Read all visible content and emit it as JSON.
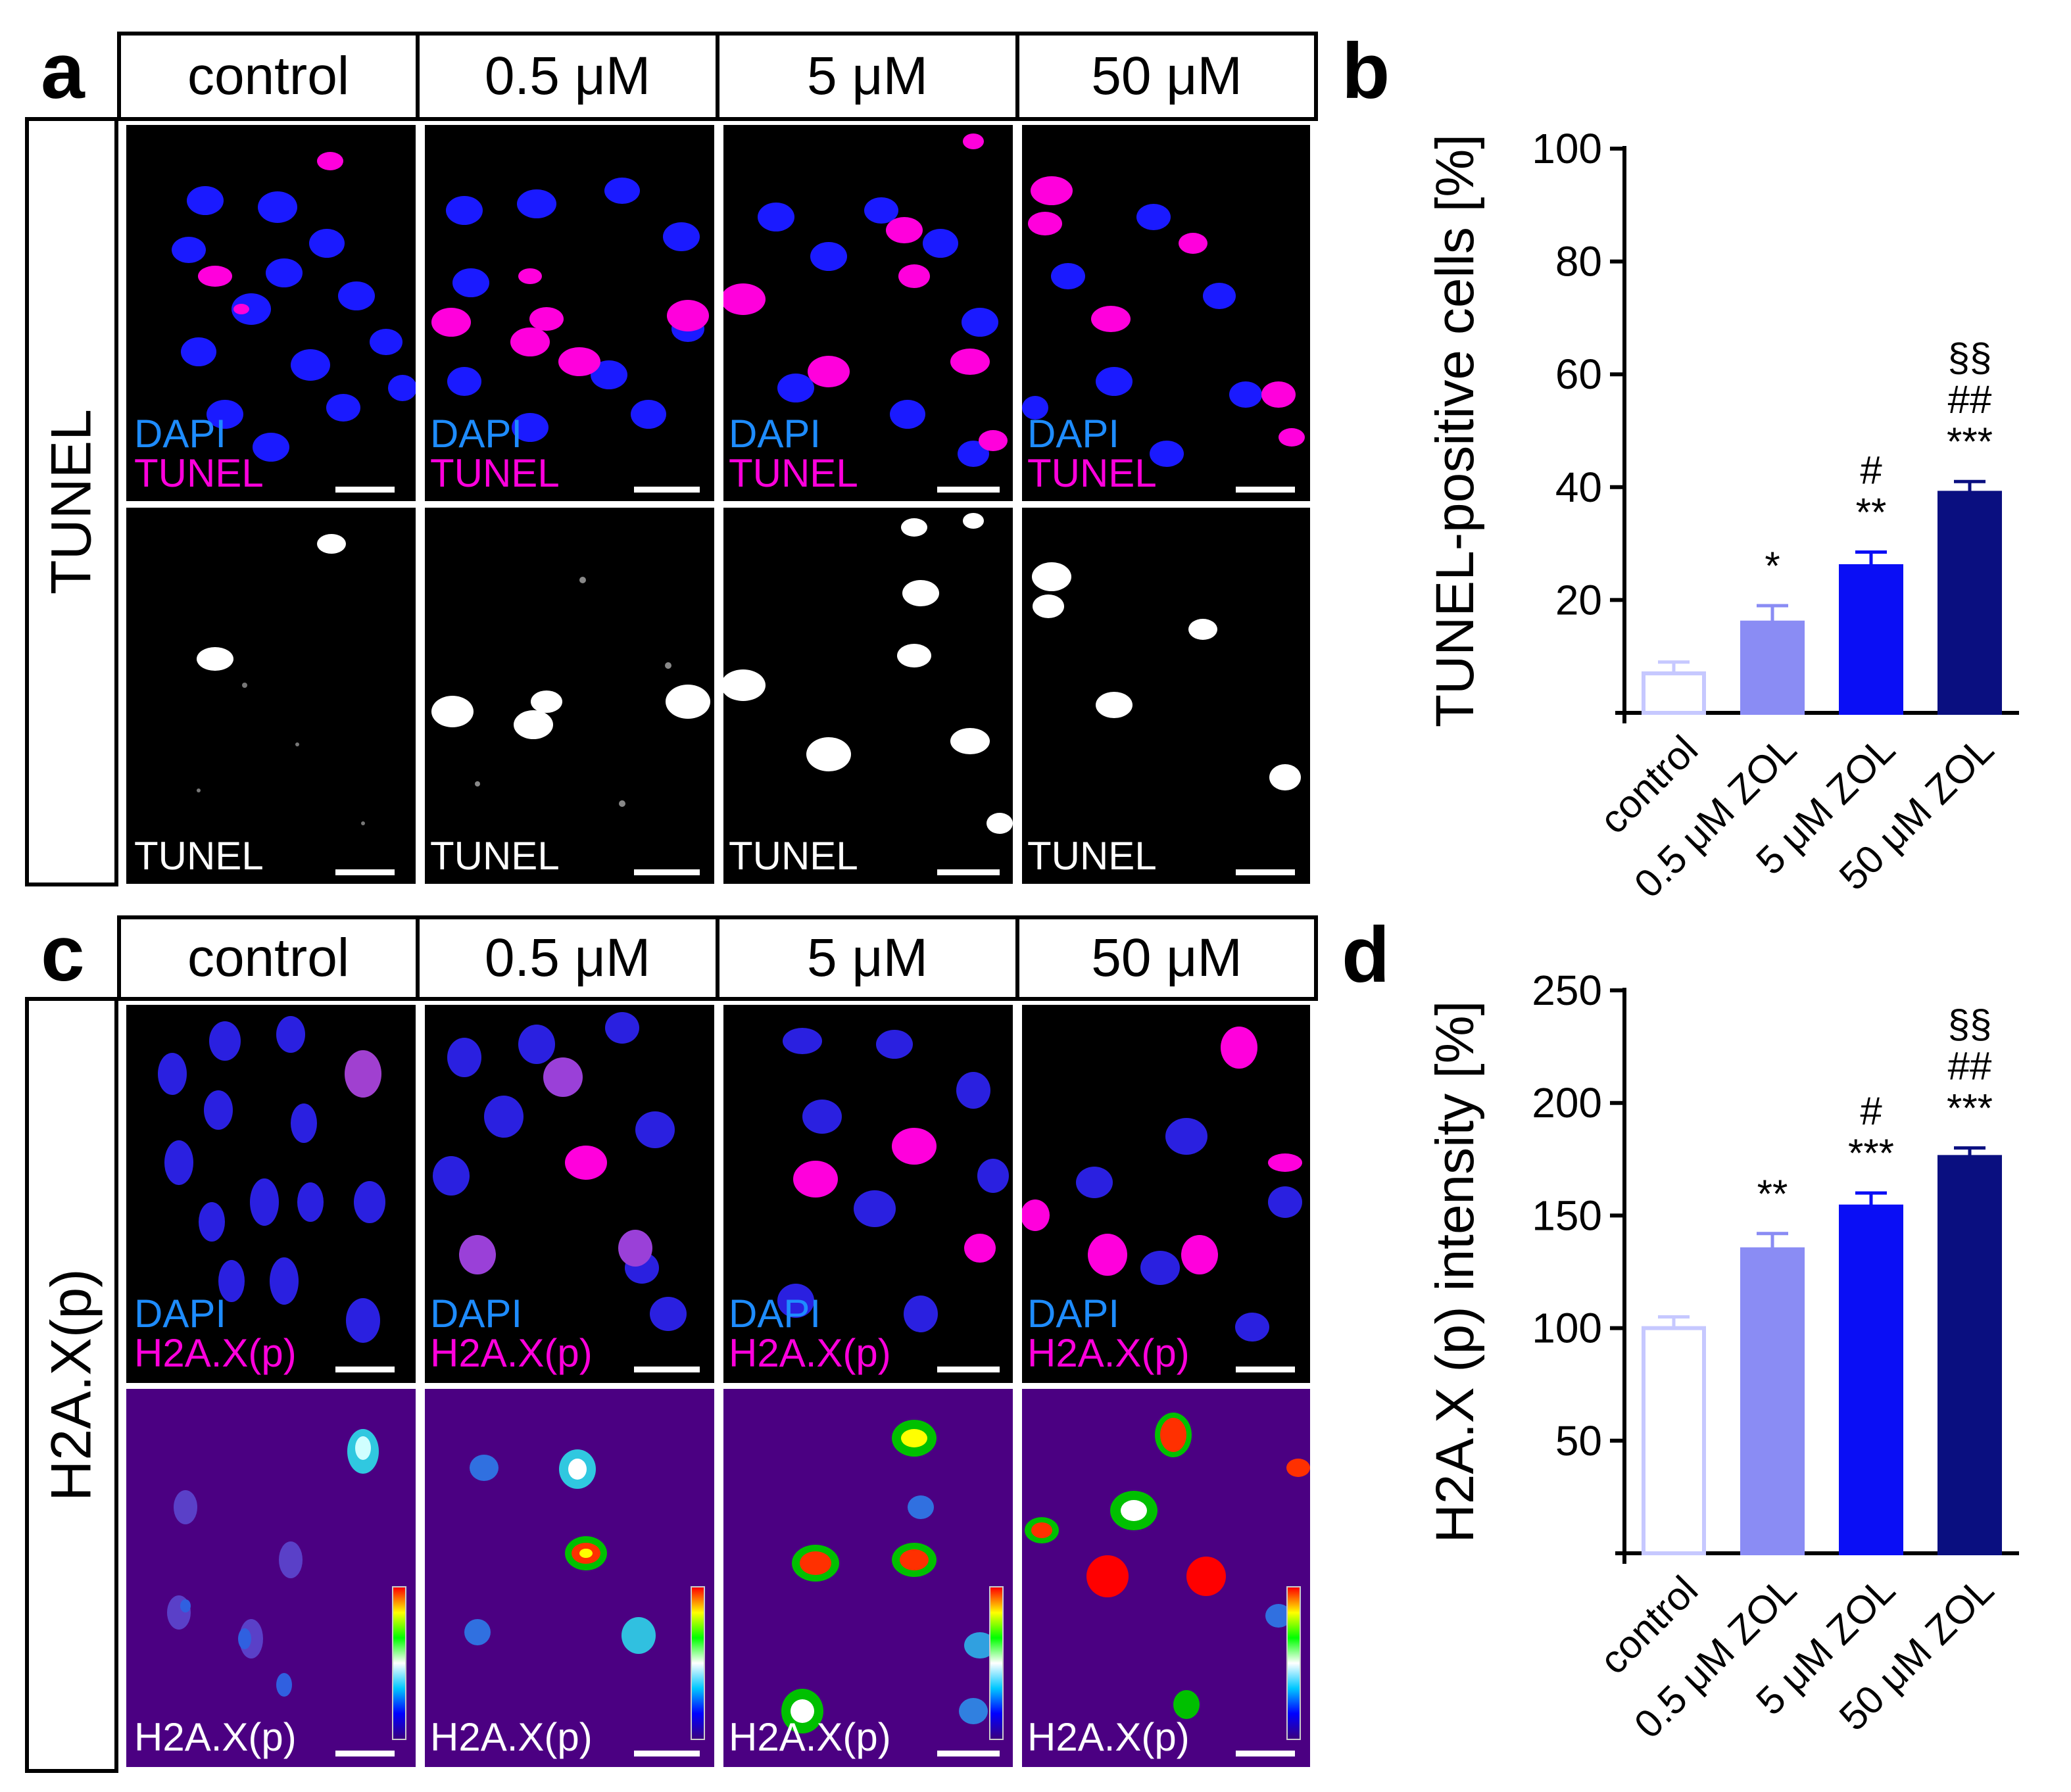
{
  "panel_letters": {
    "a": "a",
    "b": "b",
    "c": "c",
    "d": "d"
  },
  "conditions": [
    "control",
    "0.5 μM",
    "5 μM",
    "50 μM"
  ],
  "row_labels": {
    "tunel": "TUNEL",
    "h2ax": "H2A.X(p)"
  },
  "channel_labels": {
    "dapi": "DAPI",
    "tunel": "TUNEL",
    "h2ax": "H2A.X(p)"
  },
  "colors": {
    "dapi": "#1e8cff",
    "magenta": "#ff00dc",
    "control_bar": "#c6c8ff",
    "zol05_bar": "#8a8cf4",
    "zol5_bar": "#0a0ef5",
    "zol50_bar": "#0a0f80"
  },
  "chart_data": [
    {
      "type": "bar",
      "panel": "b",
      "ylabel": "TUNEL-positive cells [%]",
      "categories": [
        "control",
        "0.5 μM ZOL",
        "5 μM ZOL",
        "50 μM ZOL"
      ],
      "values": [
        7,
        16,
        26,
        39
      ],
      "errors": [
        2,
        3,
        2.5,
        2
      ],
      "ylim": [
        0,
        100
      ],
      "yticks": [
        "20",
        "40",
        "60",
        "80",
        "100"
      ],
      "significance": [
        [],
        [
          "*"
        ],
        [
          "#",
          "**"
        ],
        [
          "§§",
          "##",
          "***"
        ]
      ]
    },
    {
      "type": "bar",
      "panel": "d",
      "ylabel": "H2A.X (p) intensity [%]",
      "categories": [
        "control",
        "0.5 μM ZOL",
        "5 μM ZOL",
        "50 μM ZOL"
      ],
      "values": [
        100,
        135,
        154,
        176
      ],
      "errors": [
        5,
        7,
        6,
        4
      ],
      "ylim": [
        0,
        250
      ],
      "yticks": [
        "50",
        "100",
        "150",
        "200",
        "250"
      ],
      "significance": [
        [],
        [
          "**"
        ],
        [
          "#",
          "***"
        ],
        [
          "§§",
          "##",
          "***"
        ]
      ]
    }
  ]
}
